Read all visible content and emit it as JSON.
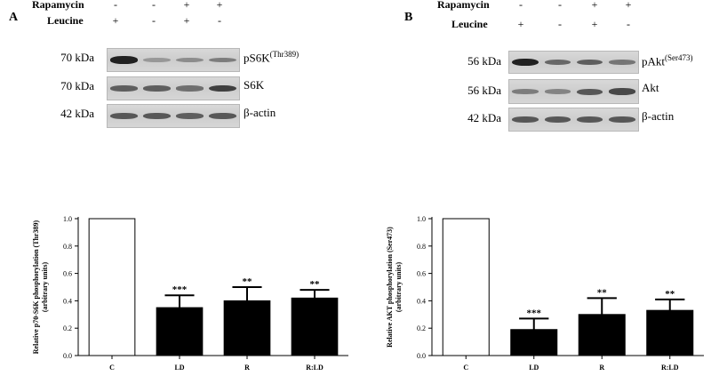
{
  "panel_a": {
    "letter": "A",
    "treatments": [
      {
        "label": "Rapamycin",
        "signs": [
          "-",
          "-",
          "+",
          "+"
        ]
      },
      {
        "label": "Leucine",
        "signs": [
          "+",
          "-",
          "+",
          "-"
        ]
      }
    ],
    "blots": [
      {
        "kda": "70 kDa",
        "protein": "pS6K",
        "superscript": "(Thr389)",
        "band_intensity": [
          0.95,
          0.18,
          0.25,
          0.35
        ]
      },
      {
        "kda": "70 kDa",
        "protein": "S6K",
        "superscript": "",
        "band_intensity": [
          0.55,
          0.55,
          0.45,
          0.75
        ]
      },
      {
        "kda": "42 kDa",
        "protein": "β-actin",
        "superscript": "",
        "band_intensity": [
          0.6,
          0.6,
          0.55,
          0.6
        ]
      }
    ]
  },
  "panel_b": {
    "letter": "B",
    "treatments": [
      {
        "label": "Rapamycin",
        "signs": [
          "-",
          "-",
          "+",
          "+"
        ]
      },
      {
        "label": "Leucine",
        "signs": [
          "+",
          "-",
          "+",
          "-"
        ]
      }
    ],
    "blots": [
      {
        "kda": "56 kDa",
        "protein": "pAkt",
        "superscript": "(Ser473)",
        "band_intensity": [
          0.95,
          0.5,
          0.55,
          0.4
        ]
      },
      {
        "kda": "56 kDa",
        "protein": "Akt",
        "superscript": "",
        "band_intensity": [
          0.35,
          0.3,
          0.6,
          0.7
        ]
      },
      {
        "kda": "42 kDa",
        "protein": "β-actin",
        "superscript": "",
        "band_intensity": [
          0.6,
          0.6,
          0.6,
          0.6
        ]
      }
    ]
  },
  "chart_data": [
    {
      "type": "bar",
      "categories": [
        "C",
        "LD",
        "R",
        "R:LD"
      ],
      "values": [
        1.0,
        0.35,
        0.4,
        0.42
      ],
      "errors": [
        0,
        0.09,
        0.1,
        0.06
      ],
      "significance": [
        "",
        "***",
        "**",
        "**"
      ],
      "ylabel": "Relative p70-S6K phosphorylation (Thr389)",
      "ylabel2": "(arbitrary units)",
      "ylim": [
        0,
        1.0
      ],
      "yticks": [
        "0.0",
        "0.2",
        "0.4",
        "0.6",
        "0.8",
        "1.0"
      ],
      "bar_colors": [
        "#ffffff",
        "#000000",
        "#000000",
        "#000000"
      ]
    },
    {
      "type": "bar",
      "categories": [
        "C",
        "LD",
        "R",
        "R:LD"
      ],
      "values": [
        1.0,
        0.19,
        0.3,
        0.33
      ],
      "errors": [
        0,
        0.08,
        0.12,
        0.08
      ],
      "significance": [
        "",
        "***",
        "**",
        "**"
      ],
      "ylabel": "Relative AKT phosphorylation (Ser473)",
      "ylabel2": "(arbitrary units)",
      "ylim": [
        0,
        1.0
      ],
      "yticks": [
        "0.0",
        "0.2",
        "0.4",
        "0.6",
        "0.8",
        "1.0"
      ],
      "bar_colors": [
        "#ffffff",
        "#000000",
        "#000000",
        "#000000"
      ]
    }
  ]
}
